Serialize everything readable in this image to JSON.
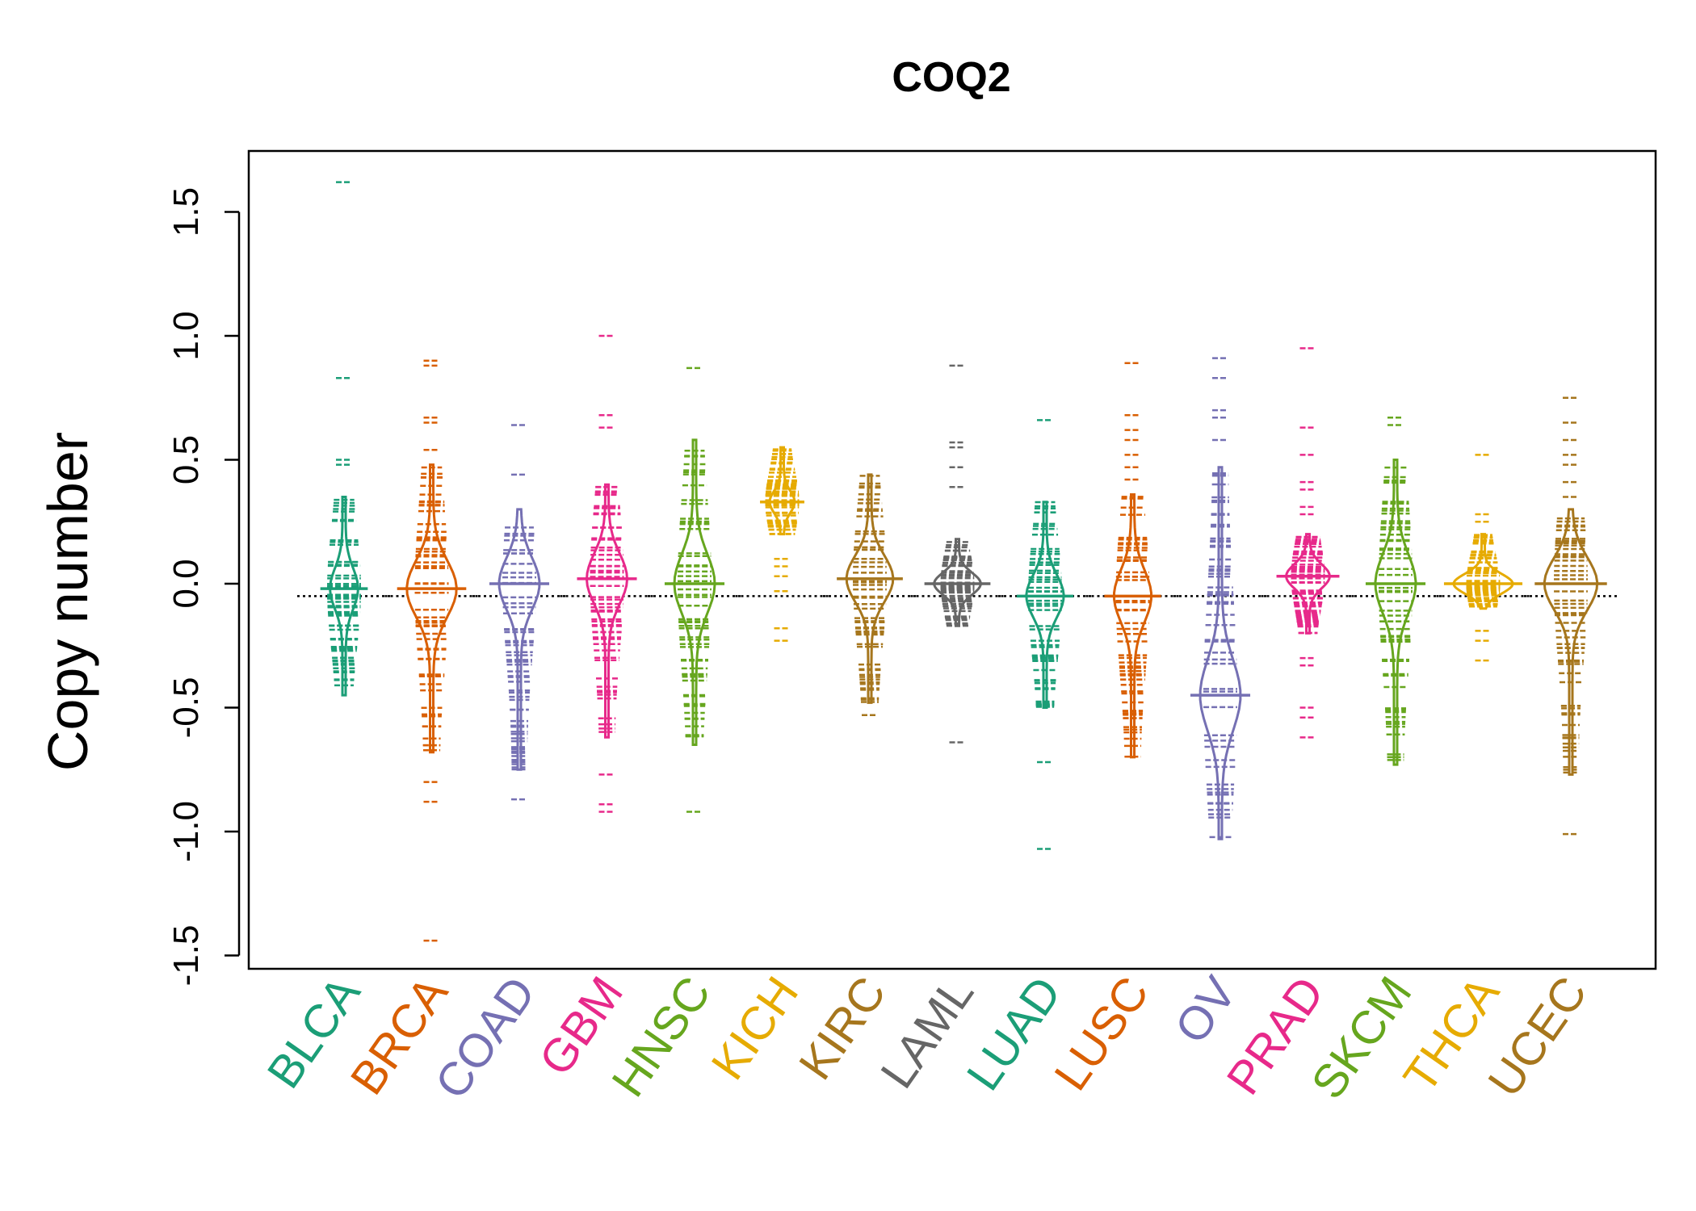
{
  "chart_data": {
    "type": "beanplot",
    "title": "COQ2",
    "xlabel": "",
    "ylabel": "Copy number",
    "ylim": [
      -1.5,
      1.5
    ],
    "yticks": [
      "-1.5",
      "-1.0",
      "-0.5",
      "0.0",
      "0.5",
      "1.0",
      "1.5"
    ],
    "reference_line": -0.05,
    "categories": [
      "BLCA",
      "BRCA",
      "COAD",
      "GBM",
      "HNSC",
      "KICH",
      "KIRC",
      "LAML",
      "LUAD",
      "LUSC",
      "OV",
      "PRAD",
      "SKCM",
      "THCA",
      "UCEC"
    ],
    "series": [
      {
        "color": "#1b9e77",
        "median": -0.02,
        "min": -0.7,
        "max": 1.62,
        "width": 0.16,
        "dense": [
          -0.45,
          0.35
        ],
        "outliers": [
          1.62,
          0.83,
          0.5,
          0.48
        ]
      },
      {
        "color": "#d95f02",
        "median": -0.02,
        "min": -1.44,
        "max": 0.9,
        "width": 0.3,
        "dense": [
          -0.68,
          0.48
        ],
        "outliers": [
          0.9,
          0.88,
          0.67,
          0.65,
          0.54,
          -0.8,
          -0.88,
          -1.44
        ]
      },
      {
        "color": "#7570b3",
        "median": 0.0,
        "min": -0.87,
        "max": 0.64,
        "width": 0.24,
        "dense": [
          -0.75,
          0.3
        ],
        "outliers": [
          0.64,
          0.44,
          -0.87
        ]
      },
      {
        "color": "#e7298a",
        "median": 0.02,
        "min": -0.92,
        "max": 1.0,
        "width": 0.24,
        "dense": [
          -0.62,
          0.4
        ],
        "outliers": [
          1.0,
          0.68,
          0.63,
          -0.77,
          -0.89,
          -0.92
        ]
      },
      {
        "color": "#66a61e",
        "median": 0.0,
        "min": -0.92,
        "max": 0.87,
        "width": 0.24,
        "dense": [
          -0.65,
          0.58
        ],
        "outliers": [
          0.87,
          -0.92
        ]
      },
      {
        "color": "#e6ab02",
        "median": 0.33,
        "min": -0.23,
        "max": 0.58,
        "width": 0.14,
        "dense": [
          0.2,
          0.55
        ],
        "outliers": [
          0.1,
          0.07,
          0.03,
          -0.03,
          -0.18,
          -0.23
        ]
      },
      {
        "color": "#a6761d",
        "median": 0.02,
        "min": -0.53,
        "max": 0.47,
        "width": 0.28,
        "dense": [
          -0.48,
          0.44
        ],
        "outliers": [
          -0.53
        ]
      },
      {
        "color": "#666666",
        "median": 0.0,
        "min": -0.64,
        "max": 0.88,
        "width": 0.28,
        "dense": [
          -0.17,
          0.18
        ],
        "outliers": [
          0.88,
          0.57,
          0.55,
          0.47,
          0.39,
          -0.64
        ]
      },
      {
        "color": "#1b9e77",
        "median": -0.05,
        "min": -1.07,
        "max": 0.66,
        "width": 0.22,
        "dense": [
          -0.5,
          0.33
        ],
        "outliers": [
          0.66,
          -0.72,
          -1.07
        ]
      },
      {
        "color": "#d95f02",
        "median": -0.05,
        "min": -0.7,
        "max": 0.89,
        "width": 0.22,
        "dense": [
          -0.7,
          0.36
        ],
        "outliers": [
          0.89,
          0.68,
          0.62,
          0.58,
          0.52,
          0.47,
          0.42
        ]
      },
      {
        "color": "#7570b3",
        "median": -0.45,
        "min": -1.03,
        "max": 0.91,
        "width": 0.24,
        "dense": [
          -1.03,
          0.47
        ],
        "outliers": [
          0.91,
          0.83,
          0.7,
          0.67,
          0.58
        ]
      },
      {
        "color": "#e7298a",
        "median": 0.03,
        "min": -0.62,
        "max": 0.95,
        "width": 0.26,
        "dense": [
          -0.2,
          0.2
        ],
        "outliers": [
          0.95,
          0.63,
          0.52,
          0.41,
          0.38,
          0.31,
          0.28,
          -0.3,
          -0.33,
          -0.5,
          -0.54,
          -0.62
        ]
      },
      {
        "color": "#66a61e",
        "median": 0.0,
        "min": -0.74,
        "max": 0.67,
        "width": 0.24,
        "dense": [
          -0.73,
          0.5
        ],
        "outliers": [
          0.67,
          0.64
        ]
      },
      {
        "color": "#e6ab02",
        "median": 0.0,
        "min": -0.31,
        "max": 0.52,
        "width": 0.36,
        "dense": [
          -0.1,
          0.2
        ],
        "outliers": [
          0.52,
          0.28,
          0.25,
          -0.19,
          -0.23,
          -0.31
        ]
      },
      {
        "color": "#a6761d",
        "median": 0.0,
        "min": -1.01,
        "max": 0.75,
        "width": 0.32,
        "dense": [
          -0.77,
          0.3
        ],
        "outliers": [
          0.75,
          0.65,
          0.58,
          0.52,
          0.48,
          0.41,
          0.35,
          -1.01
        ]
      }
    ]
  }
}
